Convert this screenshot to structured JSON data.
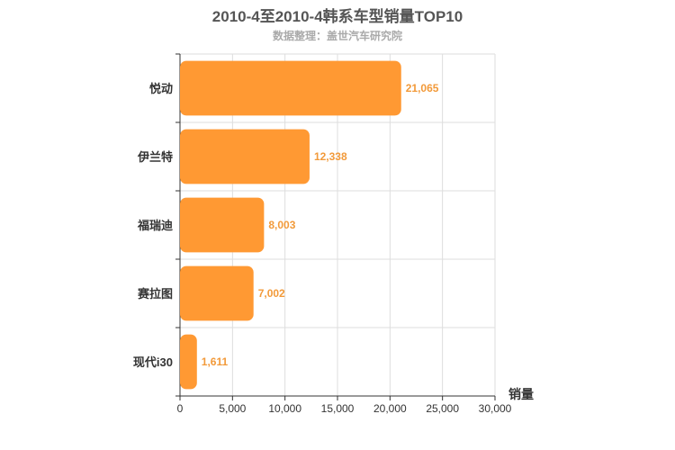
{
  "chart_data": {
    "type": "bar",
    "orientation": "horizontal",
    "title": "2010-4至2010-4韩系车型销量TOP10",
    "subtitle": "数据整理：盖世汽车研究院",
    "categories": [
      "悦动",
      "伊兰特",
      "福瑞迪",
      "赛拉图",
      "现代i30"
    ],
    "values": [
      21065,
      12338,
      8003,
      7002,
      1611
    ],
    "value_labels": [
      "21,065",
      "12,338",
      "8,003",
      "7,002",
      "1,611"
    ],
    "xlabel": "销量",
    "ylabel": "",
    "xlim": [
      0,
      30000
    ],
    "x_ticks": [
      0,
      5000,
      10000,
      15000,
      20000,
      25000,
      30000
    ],
    "x_tick_labels": [
      "0",
      "5,000",
      "10,000",
      "15,000",
      "20,000",
      "25,000",
      "30,000"
    ],
    "grid": true,
    "bar_color": "#ff9933",
    "label_color": "#f29a3a"
  }
}
